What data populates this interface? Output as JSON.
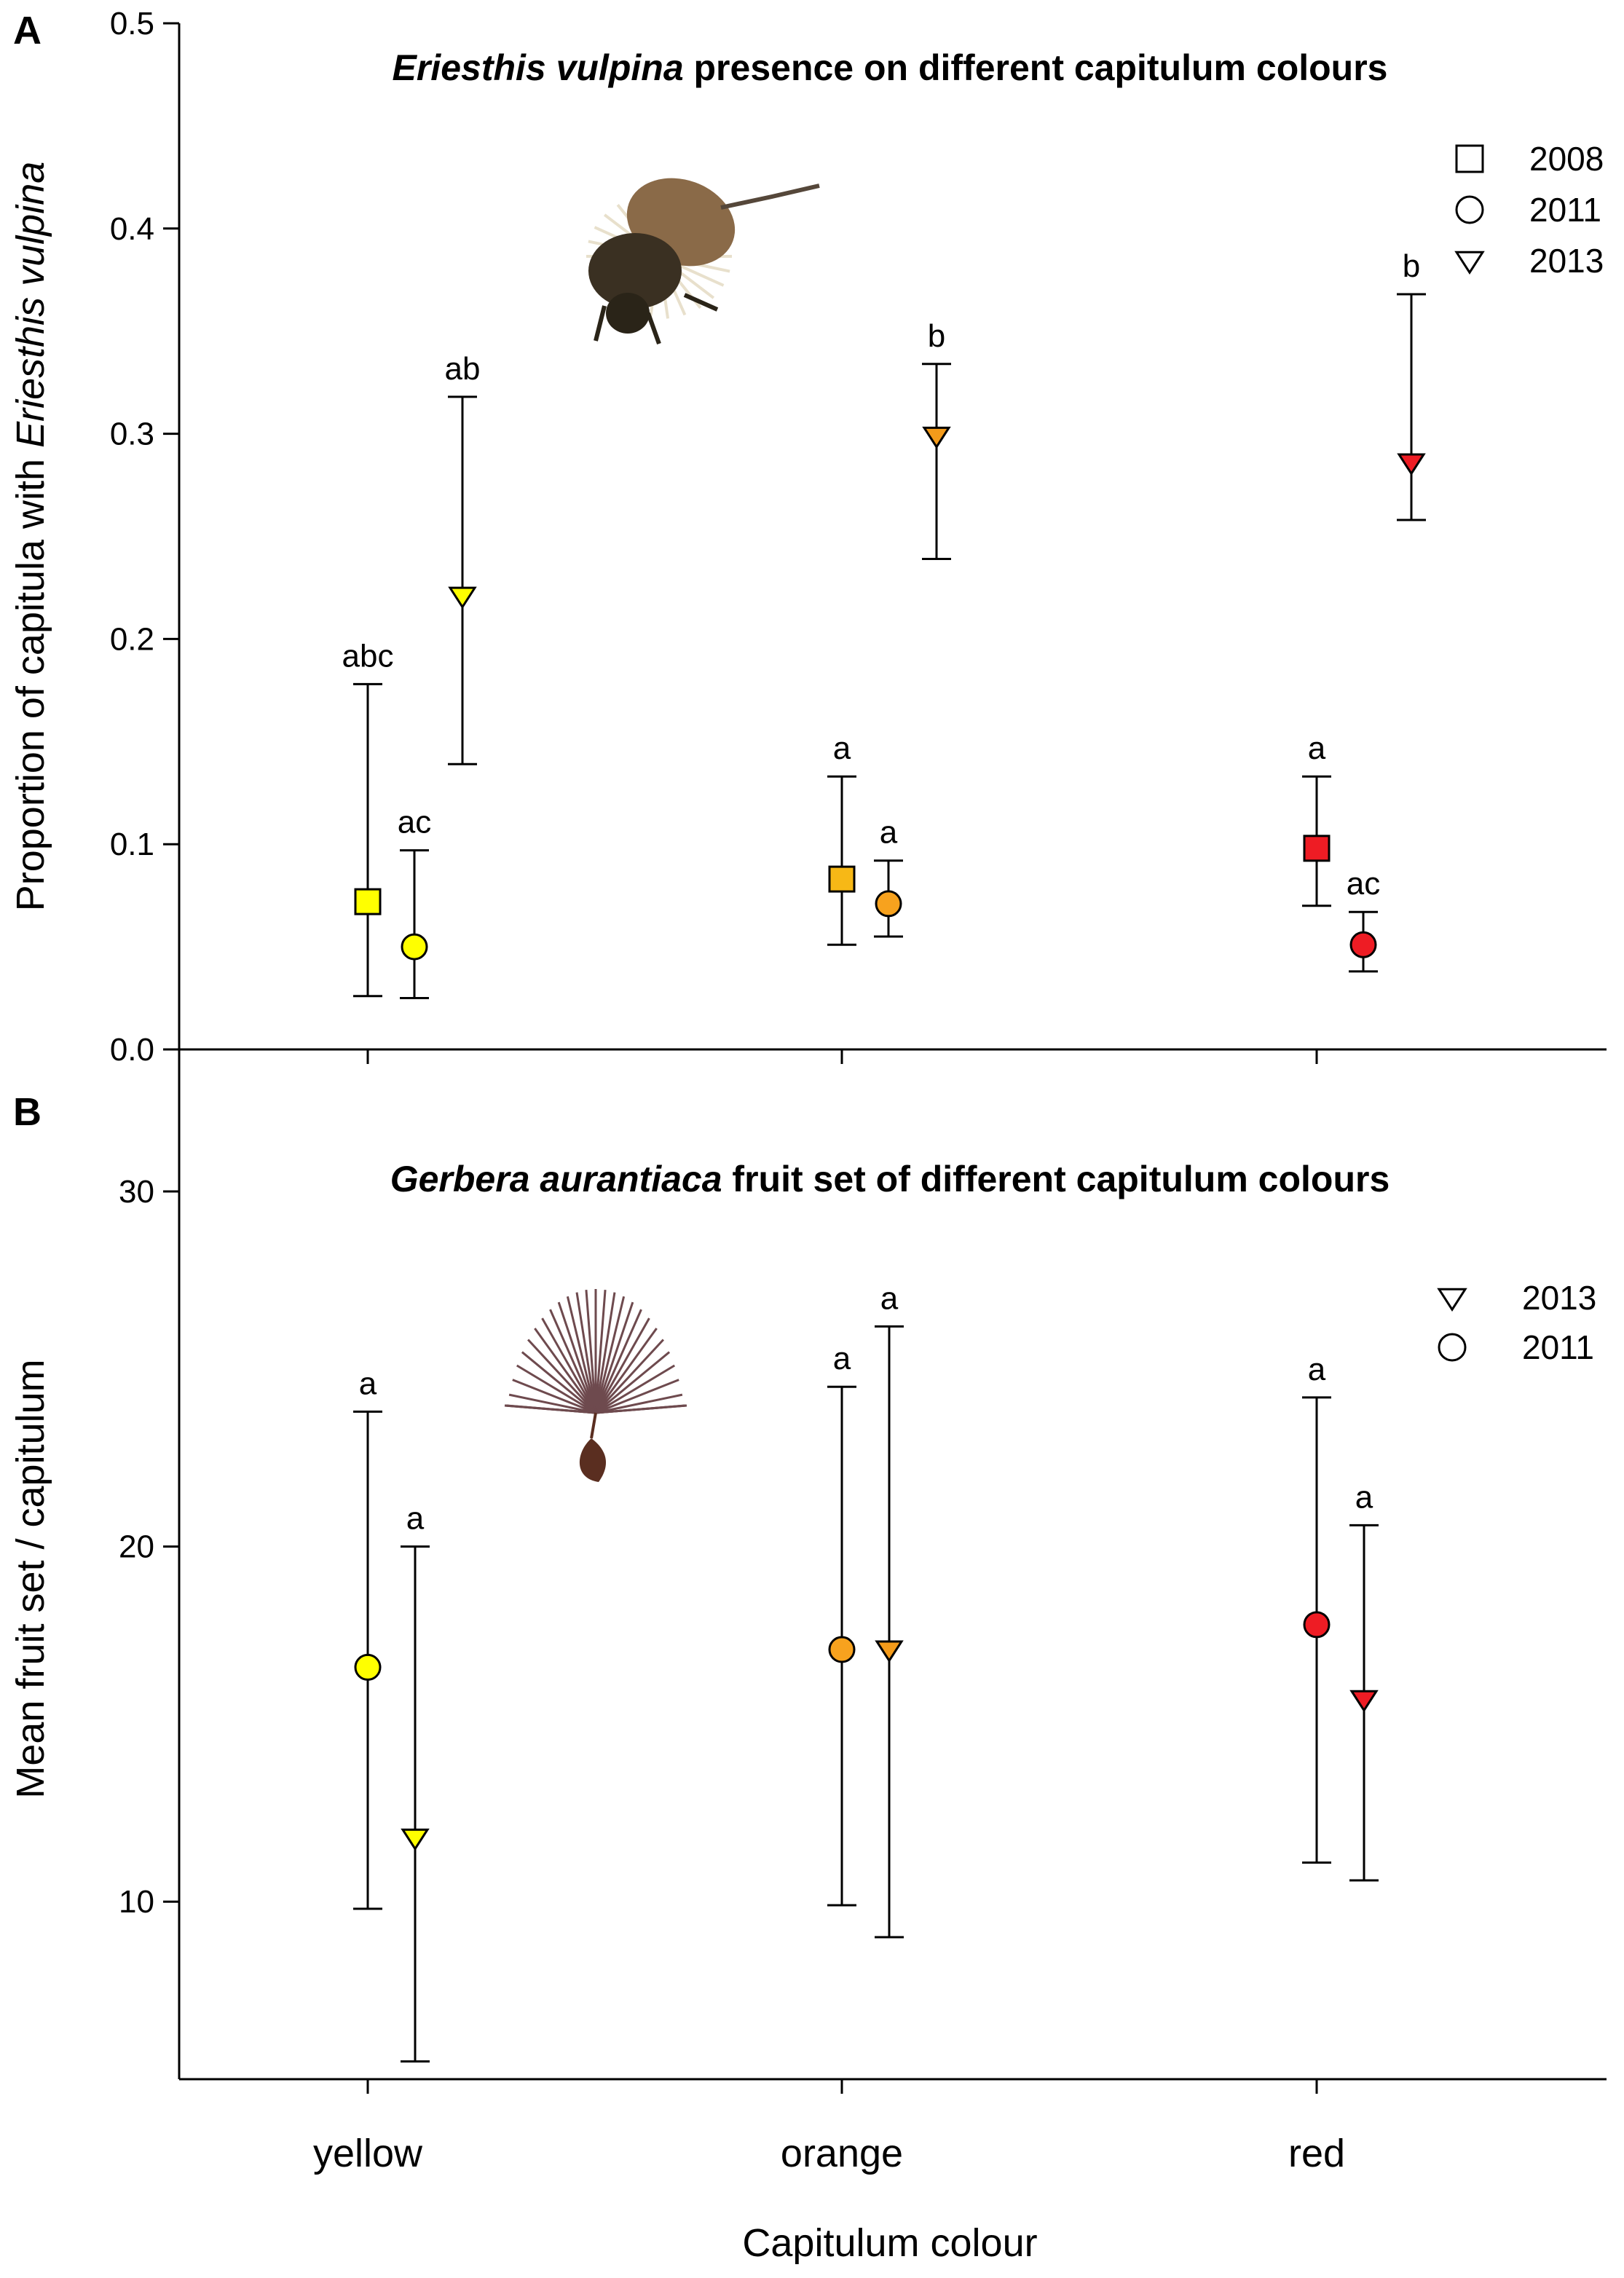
{
  "colors": {
    "yellow": "#ffff00",
    "orange_square": "#f7b816",
    "orange_circle": "#f7a21e",
    "orange_triangle": "#f49b1a",
    "red": "#ee1c24",
    "axis": "#000000",
    "beetle_body": "#3a3022",
    "beetle_elytra": "#8a6a48",
    "seed_pappus": "#6e4a4e",
    "seed_body": "#5a2e20"
  },
  "icons": {
    "beetle": "eriesthis-vulpina-beetle-icon",
    "seed": "gerbera-seed-pappus-icon"
  },
  "chart_data": [
    {
      "panel": "A",
      "type": "scatter",
      "title_italic": "Eriesthis vulpina",
      "title_rest": " presence on different capitulum colours",
      "ylabel_prefix": "Proportion of capitula with ",
      "ylabel_italic": "Eriesthis vulpina",
      "xlabel": "",
      "ylim": [
        0,
        0.5
      ],
      "yticks": [
        0.0,
        0.1,
        0.2,
        0.3,
        0.4,
        0.5
      ],
      "ytick_labels": [
        "0.0",
        "0.1",
        "0.2",
        "0.3",
        "0.4",
        "0.5"
      ],
      "categories": [
        "yellow",
        "orange",
        "red"
      ],
      "legend": [
        {
          "year": "2008",
          "marker": "square"
        },
        {
          "year": "2011",
          "marker": "circle"
        },
        {
          "year": "2013",
          "marker": "triangle"
        }
      ],
      "series": [
        {
          "name": "2008",
          "marker": "square",
          "points": [
            {
              "category": "yellow",
              "y": 0.072,
              "low": 0.026,
              "high": 0.178,
              "label": "abc",
              "color": "#ffff00"
            },
            {
              "category": "orange",
              "y": 0.083,
              "low": 0.051,
              "high": 0.133,
              "label": "a",
              "color": "#f7b816"
            },
            {
              "category": "red",
              "y": 0.098,
              "low": 0.07,
              "high": 0.133,
              "label": "a",
              "color": "#ee1c24"
            }
          ]
        },
        {
          "name": "2011",
          "marker": "circle",
          "points": [
            {
              "category": "yellow",
              "y": 0.05,
              "low": 0.025,
              "high": 0.097,
              "label": "ac",
              "color": "#ffff00"
            },
            {
              "category": "orange",
              "y": 0.071,
              "low": 0.055,
              "high": 0.092,
              "label": "a",
              "color": "#f7a21e"
            },
            {
              "category": "red",
              "y": 0.051,
              "low": 0.038,
              "high": 0.067,
              "label": "ac",
              "color": "#ee1c24"
            }
          ]
        },
        {
          "name": "2013",
          "marker": "triangle",
          "points": [
            {
              "category": "yellow",
              "y": 0.221,
              "low": 0.139,
              "high": 0.318,
              "label": "ab",
              "color": "#ffff00"
            },
            {
              "category": "orange",
              "y": 0.299,
              "low": 0.239,
              "high": 0.334,
              "label": "b",
              "color": "#f49b1a"
            },
            {
              "category": "red",
              "y": 0.286,
              "low": 0.258,
              "high": 0.368,
              "label": "b",
              "color": "#ee1c24"
            }
          ]
        }
      ]
    },
    {
      "panel": "B",
      "type": "scatter",
      "title_italic": "Gerbera aurantiaca",
      "title_rest": " fruit set of different capitulum colours",
      "ylabel": "Mean fruit set / capitulum",
      "xlabel": "Capitulum colour",
      "ylim": [
        5,
        34
      ],
      "yticks": [
        10,
        20,
        30
      ],
      "ytick_labels": [
        "10",
        "20",
        "30"
      ],
      "categories": [
        "yellow",
        "orange",
        "red"
      ],
      "legend": [
        {
          "year": "2013",
          "marker": "triangle"
        },
        {
          "year": "2011",
          "marker": "circle"
        }
      ],
      "series": [
        {
          "name": "2011",
          "marker": "circle",
          "points": [
            {
              "category": "yellow",
              "y": 16.6,
              "low": 9.8,
              "high": 23.8,
              "label": "a",
              "color": "#ffff00"
            },
            {
              "category": "orange",
              "y": 17.1,
              "low": 9.9,
              "high": 24.5,
              "label": "a",
              "color": "#f7a21e"
            },
            {
              "category": "red",
              "y": 17.8,
              "low": 11.1,
              "high": 24.2,
              "label": "a",
              "color": "#ee1c24"
            }
          ]
        },
        {
          "name": "2013",
          "marker": "triangle",
          "points": [
            {
              "category": "yellow",
              "y": 11.8,
              "low": 5.5,
              "high": 20.0,
              "label": "a",
              "color": "#ffff00"
            },
            {
              "category": "orange",
              "y": 17.1,
              "low": 9.0,
              "high": 26.2,
              "label": "a",
              "color": "#f49b1a"
            },
            {
              "category": "red",
              "y": 15.7,
              "low": 10.6,
              "high": 20.6,
              "label": "a",
              "color": "#ee1c24"
            }
          ]
        }
      ]
    }
  ]
}
